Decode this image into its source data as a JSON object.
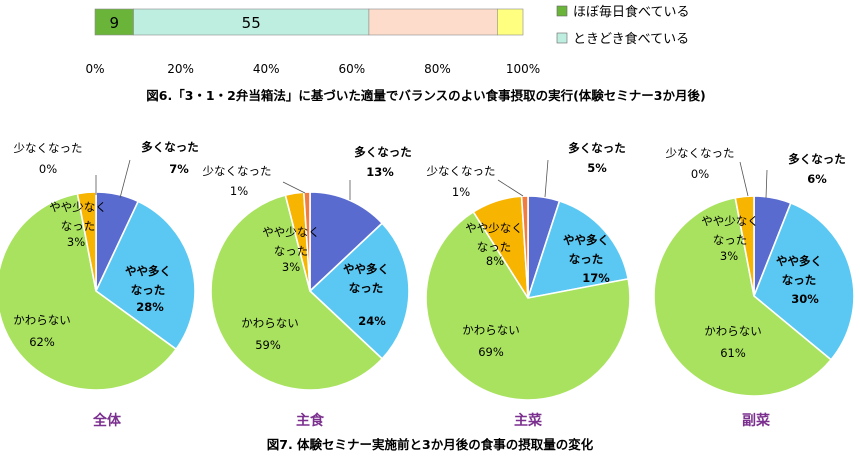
{
  "figure6": {
    "title": "図6.「3・1・2弁当箱法」に基づいた適量でバランスのよい食事摂取の実行(体験セミナー3か月後)",
    "legend": [
      "ほぼ毎日食べている",
      "ときどき食べている"
    ],
    "colors": [
      "#6ab43a",
      "#bdeee0",
      "#fddccb",
      "#ffff80"
    ]
  },
  "figure7": {
    "title": "図7. 体験セミナー実施前と3か月後の食事の摂取量の変化",
    "colors": {
      "more": "#5a6bcf",
      "slightly_more": "#5ac8f2",
      "unchanged": "#a9e25e",
      "slightly_less": "#f7b400",
      "less": "#f07c40"
    }
  },
  "chart_data": [
    {
      "type": "bar",
      "orientation": "horizontal-stacked",
      "title": "図6.「3・1・2弁当箱法」に基づいた適量でバランスのよい食事摂取の実行(体験セミナー3か月後)",
      "xlim": [
        0,
        100
      ],
      "x_ticks": [
        "0%",
        "20%",
        "40%",
        "60%",
        "80%",
        "100%"
      ],
      "series": [
        {
          "name": "ほぼ毎日食べている",
          "values": [
            9
          ],
          "label": "9"
        },
        {
          "name": "ときどき食べている",
          "values": [
            55
          ],
          "label": "55"
        },
        {
          "values": [
            30
          ]
        },
        {
          "values": [
            6
          ]
        }
      ]
    },
    {
      "type": "pie",
      "caption": "全体",
      "slices": [
        {
          "label": "多くなった",
          "value": 7,
          "text": "7%"
        },
        {
          "label": "やや多くなった",
          "value": 28,
          "text": "28%"
        },
        {
          "label": "かわらない",
          "value": 62,
          "text": "62%"
        },
        {
          "label": "やや少なくなった",
          "value": 3,
          "text": "3%"
        },
        {
          "label": "少なくなった",
          "value": 0,
          "text": "0%"
        }
      ]
    },
    {
      "type": "pie",
      "caption": "主食",
      "slices": [
        {
          "label": "多くなった",
          "value": 13,
          "text": "13%"
        },
        {
          "label": "やや多くなった",
          "value": 24,
          "text": "24%"
        },
        {
          "label": "かわらない",
          "value": 59,
          "text": "59%"
        },
        {
          "label": "やや少なくなった",
          "value": 3,
          "text": "3%"
        },
        {
          "label": "少なくなった",
          "value": 1,
          "text": "1%"
        }
      ]
    },
    {
      "type": "pie",
      "caption": "主菜",
      "slices": [
        {
          "label": "多くなった",
          "value": 5,
          "text": "5%"
        },
        {
          "label": "やや多くなった",
          "value": 17,
          "text": "17%"
        },
        {
          "label": "かわらない",
          "value": 69,
          "text": "69%"
        },
        {
          "label": "やや少なくなった",
          "value": 8,
          "text": "8%"
        },
        {
          "label": "少なくなった",
          "value": 1,
          "text": "1%"
        }
      ]
    },
    {
      "type": "pie",
      "caption": "副菜",
      "slices": [
        {
          "label": "多くなった",
          "value": 6,
          "text": "6%"
        },
        {
          "label": "やや多くなった",
          "value": 30,
          "text": "30%"
        },
        {
          "label": "かわらない",
          "value": 61,
          "text": "61%"
        },
        {
          "label": "やや少なくなった",
          "value": 3,
          "text": "3%"
        },
        {
          "label": "少なくなった",
          "value": 0,
          "text": "0%"
        }
      ]
    }
  ]
}
